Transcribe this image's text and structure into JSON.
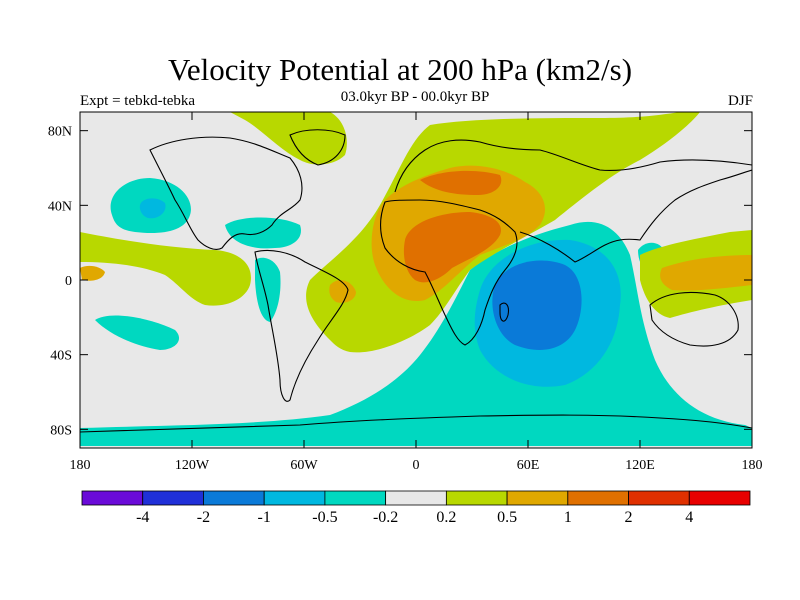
{
  "title": "Velocity Potential at 200 hPa (km2/s)",
  "subtitle_left": "Expt = tebkd-tebka",
  "subtitle_center": "03.0kyr BP - 00.0kyr BP",
  "subtitle_right": "DJF",
  "axes": {
    "lon_labels": [
      "180",
      "120W",
      "60W",
      "0",
      "60E",
      "120E",
      "180"
    ],
    "lon_values": [
      -180,
      -120,
      -60,
      0,
      60,
      120,
      180
    ],
    "lat_labels": [
      "80N",
      "40N",
      "0",
      "40S",
      "80S"
    ],
    "lat_values": [
      80,
      40,
      0,
      -40,
      -80
    ],
    "lon_range": [
      -180,
      180
    ],
    "lat_range": [
      -90,
      90
    ]
  },
  "colorbar": {
    "labels": [
      "-4",
      "-2",
      "-1",
      "-0.5",
      "-0.2",
      "0.2",
      "0.5",
      "1",
      "2",
      "4"
    ],
    "colors": [
      "#6a0ad8",
      "#2030d8",
      "#0a7ad8",
      "#00b8e0",
      "#00d8c0",
      "#e8e8e8",
      "#b8d800",
      "#e0a800",
      "#e07000",
      "#e03000",
      "#e80000"
    ]
  },
  "colors": {
    "neutral": "#e8e8e8",
    "pos_weak": "#b8d800",
    "pos_mid": "#e0a800",
    "pos_strong": "#e07000",
    "neg_weak": "#00d8c0",
    "neg_mid": "#00b8e0",
    "neg_strong": "#0a7ad8"
  }
}
